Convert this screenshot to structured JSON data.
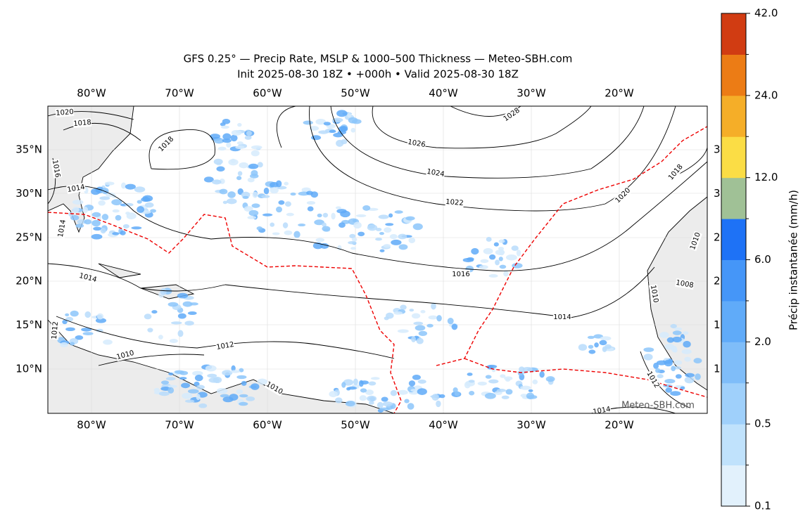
{
  "title": "GFS 0.25° — Precip Rate, MSLP & 1000–500 Thickness — Meteo-SBH.com",
  "subtitle": "Init 2025-08-30 18Z • +000h • Valid 2025-08-30 18Z",
  "lon_labels": [
    "80°W",
    "70°W",
    "60°W",
    "50°W",
    "40°W",
    "30°W",
    "20°W"
  ],
  "lat_labels": [
    "35°N",
    "30°N",
    "25°N",
    "20°N",
    "15°N",
    "10°N"
  ],
  "right_lat_labels": [
    "3",
    "3",
    "2",
    "2",
    "1",
    "1"
  ],
  "isobar_labels": [
    "1020",
    "1018",
    "1018",
    "1016",
    "1014",
    "1014",
    "1014",
    "1026",
    "1024",
    "1022",
    "1016",
    "1014",
    "1012",
    "1010",
    "1028",
    "1020",
    "1018",
    "1010",
    "1008",
    "1010",
    "1012",
    "1010",
    "1012",
    "1014"
  ],
  "watermark": "Meteo-SBH.com",
  "colorbar": {
    "label": "Précip instantanée (mm/h)",
    "colors": [
      "#e2f1fc",
      "#c0e2fc",
      "#9fd0fb",
      "#7fbdf9",
      "#60abf9",
      "#4596f8",
      "#1e72f6",
      "#a0c196",
      "#fbdd45",
      "#f5ae28",
      "#ec7c15",
      "#d13c12"
    ],
    "ticks": [
      0.1,
      0.5,
      {
        "value": 2,
        "label": "2.0"
      },
      {
        "value": 6,
        "label": "6.0"
      },
      {
        "value": 12,
        "label": "12.0"
      },
      {
        "value": 24,
        "label": "24.0"
      },
      {
        "value": 42,
        "label": "42.0"
      }
    ]
  }
}
